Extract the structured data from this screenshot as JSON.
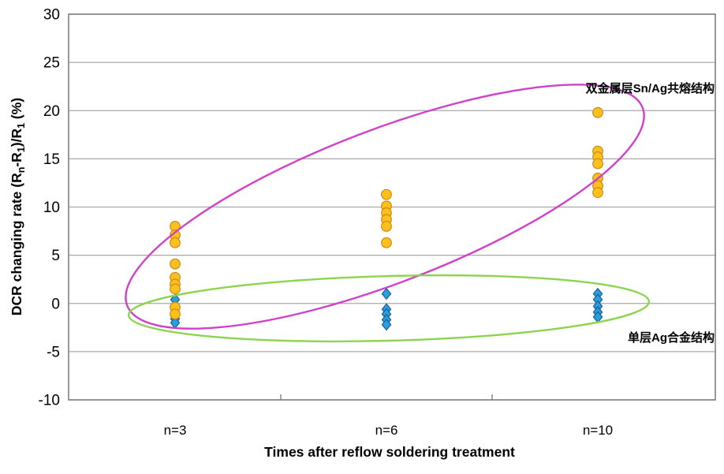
{
  "chart_data": {
    "type": "scatter",
    "title": "",
    "xlabel": "Times after reflow soldering treatment",
    "ylabel": "DCR changing rate (Rn-R1)/R1 (%)",
    "ylabel_parts": [
      {
        "t": "DCR changing rate (R"
      },
      {
        "t": "n",
        "sub": true
      },
      {
        "t": "-R"
      },
      {
        "t": "1",
        "sub": true
      },
      {
        "t": ")/R"
      },
      {
        "t": "1",
        "sub": true
      },
      {
        "t": " (%)"
      }
    ],
    "ylim": [
      -10,
      30
    ],
    "yticks": [
      30,
      25,
      20,
      15,
      10,
      5,
      0,
      -5,
      -10
    ],
    "grid": true,
    "legend_position": "none",
    "categories": [
      "n=3",
      "n=6",
      "n=10"
    ],
    "series": [
      {
        "name": "单层Ag合金结构",
        "marker": "diamond",
        "fill": "#2B9FD9",
        "border": "#1A5E9E",
        "values_by_category": [
          [
            0.4,
            -1.6,
            -2.0
          ],
          [
            1.0,
            -0.6,
            -1.1,
            -1.7,
            -2.2
          ],
          [
            1.0,
            0.4,
            -0.3,
            -0.9,
            -1.4
          ]
        ]
      },
      {
        "name": "双金属层Sn/Ag共熔结构",
        "marker": "circle",
        "fill": "#FFC01E",
        "border": "#C98A12",
        "values_by_category": [
          [
            8.0,
            7.1,
            6.3,
            4.1,
            2.7,
            2.0,
            1.5,
            -0.4,
            -1.1
          ],
          [
            11.3,
            10.1,
            9.4,
            8.7,
            8.0,
            6.3
          ],
          [
            19.8,
            15.8,
            15.2,
            14.5,
            13.0,
            12.2,
            11.5
          ]
        ]
      }
    ],
    "annotations": [
      {
        "id": "sn-ag-label",
        "text": "双金属层Sn/Ag共熔结构",
        "color": "#000000"
      },
      {
        "id": "ag-alloy-label",
        "text": "单层Ag合金结构",
        "color": "#000000"
      }
    ],
    "cluster_ellipses": [
      {
        "id": "sn-ag-cluster",
        "color": "#D040C8"
      },
      {
        "id": "ag-alloy-cluster",
        "color": "#8CD44E"
      }
    ],
    "colors": {
      "gridline": "#A8A8A8",
      "plot_border": "#7F7F7F",
      "background": "#FFFFFF",
      "text": "#000000"
    }
  }
}
